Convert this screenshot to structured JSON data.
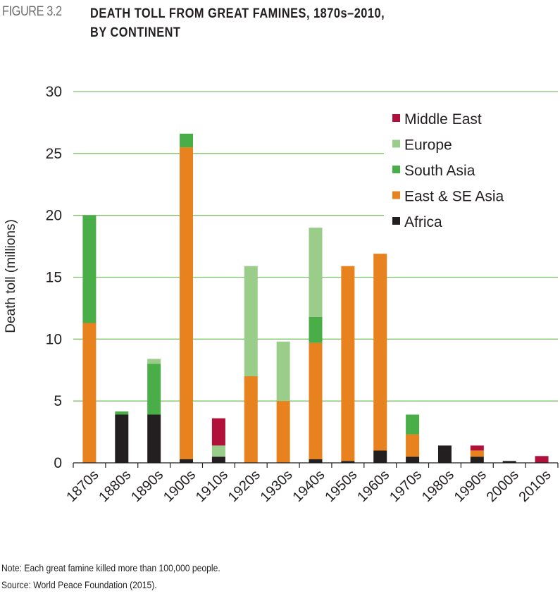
{
  "figure": {
    "number": "FIGURE 3.2",
    "title_line1": "DEATH TOLL FROM GREAT FAMINES, 1870s–2010,",
    "title_line2": "BY CONTINENT"
  },
  "notes": {
    "note": "Note: Each great famine killed more than 100,000 people.",
    "source": "Source: World Peace Foundation (2015)."
  },
  "chart_data": {
    "type": "bar",
    "stacked": true,
    "title": "Death toll from great famines, 1870s–2010, by continent",
    "xlabel": "",
    "ylabel": "Death toll (millions)",
    "ylim": [
      0,
      30
    ],
    "yticks": [
      0,
      5,
      10,
      15,
      20,
      25,
      30
    ],
    "grid": true,
    "legend_position": "top-right",
    "categories": [
      "1870s",
      "1880s",
      "1890s",
      "1900s",
      "1910s",
      "1920s",
      "1930s",
      "1940s",
      "1950s",
      "1960s",
      "1970s",
      "1980s",
      "1990s",
      "2000s",
      "2010s"
    ],
    "series": [
      {
        "name": "Africa",
        "color": "#231f20",
        "values": [
          0,
          3.9,
          3.9,
          0.3,
          0.5,
          0,
          0,
          0.3,
          0.15,
          1.0,
          0.5,
          1.4,
          0.5,
          0.15,
          0
        ]
      },
      {
        "name": "East & SE Asia",
        "color": "#e8821e",
        "values": [
          11.3,
          0,
          0,
          25.2,
          0,
          7.0,
          5.0,
          9.4,
          15.75,
          15.9,
          1.8,
          0,
          0.5,
          0,
          0
        ]
      },
      {
        "name": "South Asia",
        "color": "#4aae48",
        "values": [
          8.7,
          0.25,
          4.1,
          1.1,
          0,
          0,
          0,
          2.1,
          0,
          0,
          1.6,
          0,
          0,
          0,
          0
        ]
      },
      {
        "name": "Europe",
        "color": "#9acd8a",
        "values": [
          0,
          0,
          0.4,
          0,
          0.9,
          8.9,
          4.8,
          7.2,
          0,
          0,
          0,
          0,
          0,
          0,
          0
        ]
      },
      {
        "name": "Middle East",
        "color": "#b0103a",
        "values": [
          0,
          0,
          0,
          0,
          2.2,
          0,
          0,
          0,
          0,
          0,
          0,
          0,
          0.4,
          0,
          0.55
        ]
      }
    ],
    "legend_order": [
      "Middle East",
      "Europe",
      "South Asia",
      "East & SE Asia",
      "Africa"
    ],
    "gridline_color": "#7dc06a"
  }
}
